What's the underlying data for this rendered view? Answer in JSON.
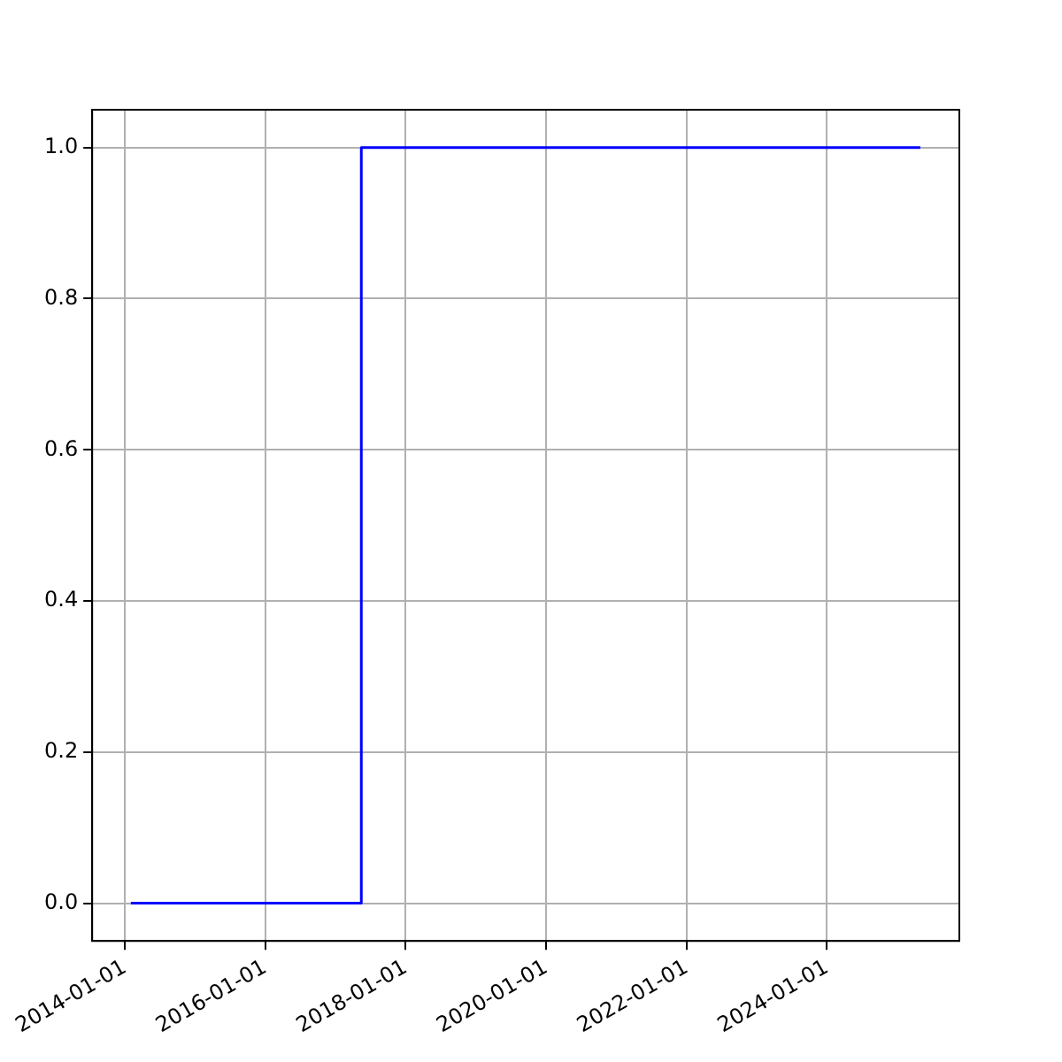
{
  "chart_data": {
    "type": "step",
    "x": [
      "2014-02-01",
      "2017-05-15",
      "2025-05-01"
    ],
    "series": [
      {
        "color": "#0000ff",
        "values": [
          0,
          1,
          1
        ]
      }
    ],
    "xlim": [
      "2013-07-15",
      "2025-11-20"
    ],
    "xticks": [
      "2014-01-01",
      "2016-01-01",
      "2018-01-01",
      "2020-01-01",
      "2022-01-01",
      "2024-01-01"
    ],
    "ylim": [
      -0.05,
      1.05
    ],
    "yticks": [
      {
        "value": 0,
        "label": "0.0"
      },
      {
        "value": 0.2,
        "label": "0.2"
      },
      {
        "value": 0.4,
        "label": "0.4"
      },
      {
        "value": 0.6,
        "label": "0.6"
      },
      {
        "value": 0.8,
        "label": "0.8"
      },
      {
        "value": 1,
        "label": "1.0"
      }
    ],
    "grid": true,
    "legend": false
  }
}
